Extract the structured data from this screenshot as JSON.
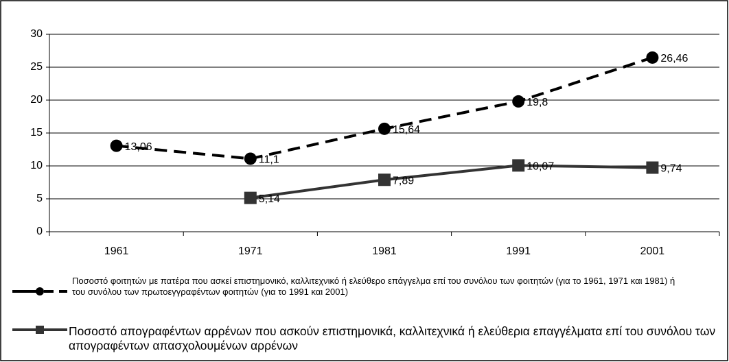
{
  "chart_data": {
    "type": "line",
    "categories": [
      "1961",
      "1971",
      "1981",
      "1991",
      "2001"
    ],
    "series": [
      {
        "name": "Ποσοστό φοιτητών με πατέρα που ασκεί επιστημονικό, καλλιτεχνικό ή ελεύθερο επάγγελμα επί του συνόλου των φοιτητών (για το 1961, 1971 και 1981) ή του συνόλου των πρωτοεγγραφέντων φοιτητών (για το 1991 και 2001)",
        "color": "#000000",
        "dashed": true,
        "marker": "circle",
        "values": [
          13.06,
          11.1,
          15.64,
          19.8,
          26.46
        ],
        "value_labels": [
          "13,06",
          "11,1",
          "15,64",
          "19,8",
          "26,46"
        ]
      },
      {
        "name": "Ποσοστό απογραφέντων αρρένων που ασκούν επιστημονικά, καλλιτεχνικά ή ελεύθερια επαγγέλματα επί του συνόλου των απογραφέντων απασχολουμένων αρρένων",
        "color": "#333333",
        "dashed": false,
        "marker": "square",
        "values": [
          null,
          5.14,
          7.89,
          10.07,
          9.74
        ],
        "value_labels": [
          null,
          "5,14",
          "7,89",
          "10,07",
          "9,74"
        ]
      }
    ],
    "ylim": [
      0,
      30
    ],
    "yticks": [
      0,
      5,
      10,
      15,
      20,
      25,
      30
    ],
    "grid": true,
    "legend": "bottom"
  }
}
